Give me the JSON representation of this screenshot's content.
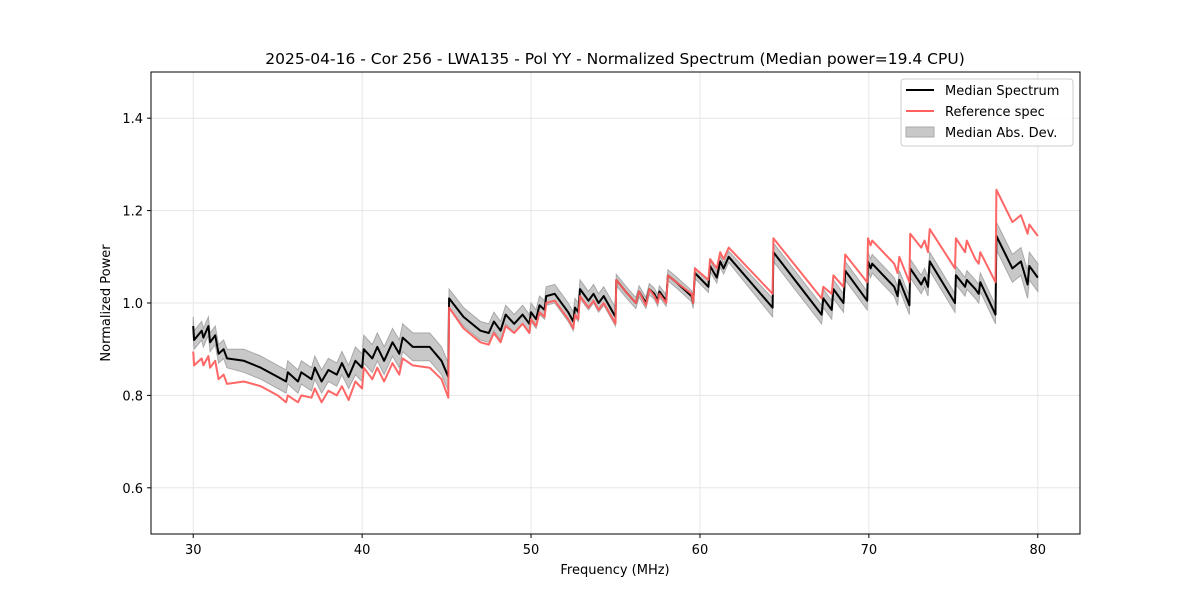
{
  "chart_data": {
    "type": "line",
    "title": "2025-04-16 - Cor 256 - LWA135 - Pol YY - Normalized Spectrum (Median power=19.4 CPU)",
    "xlabel": "Frequency (MHz)",
    "ylabel": "Normalized Power",
    "xlim": [
      27.5,
      82.5
    ],
    "ylim": [
      0.5,
      1.5
    ],
    "xticks": [
      30,
      40,
      50,
      60,
      70,
      80
    ],
    "yticks": [
      0.6,
      0.8,
      1.0,
      1.2,
      1.4
    ],
    "ytick_labels": [
      "0.6",
      "0.8",
      "1.0",
      "1.2",
      "1.4"
    ],
    "grid": true,
    "legend": {
      "placement": "top-right",
      "entries": [
        "Median Spectrum",
        "Reference spec",
        "Median Abs. Dev."
      ]
    },
    "colors": {
      "median": "#000000",
      "reference": "#ff5f5f",
      "mad": "#b0b0b0"
    },
    "frequency": [
      30.0,
      30.05,
      30.5,
      30.6,
      30.9,
      31.0,
      31.3,
      31.5,
      31.8,
      32.0,
      33,
      34,
      35,
      35.5,
      35.6,
      36.2,
      36.4,
      37,
      37.2,
      37.6,
      38,
      38.5,
      38.8,
      39.2,
      39.6,
      40,
      40.1,
      40.6,
      40.9,
      41.3,
      41.8,
      42.2,
      42.4,
      43,
      44,
      44.7,
      45.1,
      45.15,
      46,
      47,
      47.5,
      47.8,
      48.2,
      48.5,
      49,
      49.5,
      49.9,
      50,
      50.3,
      50.5,
      50.8,
      50.9,
      51.4,
      52.2,
      52.5,
      52.6,
      52.8,
      52.9,
      53.4,
      53.7,
      54,
      54.3,
      55.0,
      55.05,
      55.6,
      56.2,
      56.4,
      56.8,
      57.0,
      57.3,
      57.5,
      57.6,
      58,
      58.1,
      58.6,
      59.5,
      59.6,
      59.7,
      60.5,
      60.6,
      61,
      61.2,
      61.4,
      61.7,
      64.3,
      64.35,
      67.2,
      67.3,
      67.8,
      67.9,
      68.5,
      68.6,
      69.9,
      69.95,
      70.1,
      70.2,
      71.5,
      71.7,
      71.8,
      72.4,
      72.45,
      73.1,
      73.3,
      73.5,
      73.6,
      75.1,
      75.15,
      75.7,
      75.8,
      76.3,
      76.5,
      76.6,
      77.5,
      77.55,
      78.5,
      79,
      79.4,
      79.5,
      80
    ],
    "median": [
      0.95,
      0.92,
      0.94,
      0.925,
      0.95,
      0.915,
      0.93,
      0.89,
      0.9,
      0.88,
      0.875,
      0.86,
      0.84,
      0.83,
      0.85,
      0.83,
      0.85,
      0.835,
      0.86,
      0.83,
      0.855,
      0.845,
      0.87,
      0.84,
      0.875,
      0.86,
      0.9,
      0.88,
      0.905,
      0.875,
      0.915,
      0.89,
      0.925,
      0.905,
      0.905,
      0.875,
      0.84,
      1.01,
      0.97,
      0.94,
      0.935,
      0.96,
      0.94,
      0.975,
      0.955,
      0.975,
      0.955,
      0.98,
      0.965,
      0.995,
      0.985,
      1.015,
      1.02,
      0.98,
      0.96,
      0.99,
      0.98,
      1.03,
      1.005,
      1.02,
      1.0,
      1.015,
      0.97,
      1.05,
      1.025,
      1.0,
      1.025,
      1.0,
      1.03,
      1.02,
      1.005,
      1.025,
      1.005,
      1.06,
      1.045,
      1.015,
      1.0,
      1.065,
      1.035,
      1.08,
      1.055,
      1.09,
      1.075,
      1.1,
      0.99,
      1.11,
      0.975,
      1.01,
      0.985,
      1.03,
      1.0,
      1.07,
      1.005,
      1.09,
      1.075,
      1.085,
      1.035,
      1.015,
      1.05,
      0.995,
      1.075,
      1.04,
      1.055,
      1.035,
      1.09,
      1.0,
      1.06,
      1.035,
      1.05,
      1.03,
      1.02,
      1.045,
      0.975,
      1.145,
      1.075,
      1.09,
      1.04,
      1.08,
      1.055
    ],
    "reference": [
      0.895,
      0.865,
      0.88,
      0.865,
      0.885,
      0.86,
      0.875,
      0.835,
      0.845,
      0.825,
      0.83,
      0.82,
      0.8,
      0.785,
      0.8,
      0.785,
      0.8,
      0.795,
      0.815,
      0.785,
      0.81,
      0.8,
      0.82,
      0.79,
      0.83,
      0.815,
      0.86,
      0.835,
      0.86,
      0.83,
      0.87,
      0.845,
      0.88,
      0.865,
      0.86,
      0.835,
      0.795,
      0.99,
      0.945,
      0.915,
      0.91,
      0.935,
      0.915,
      0.95,
      0.935,
      0.955,
      0.935,
      0.965,
      0.95,
      0.98,
      0.97,
      1.0,
      1.005,
      0.965,
      0.945,
      0.975,
      0.965,
      1.015,
      0.99,
      1.005,
      0.985,
      1.0,
      0.955,
      1.05,
      1.025,
      1.0,
      1.025,
      0.995,
      1.03,
      1.015,
      1.0,
      1.02,
      1.0,
      1.06,
      1.045,
      1.02,
      1.0,
      1.075,
      1.05,
      1.095,
      1.075,
      1.11,
      1.095,
      1.12,
      1.02,
      1.14,
      1.01,
      1.035,
      1.02,
      1.06,
      1.035,
      1.105,
      1.045,
      1.14,
      1.125,
      1.135,
      1.085,
      1.065,
      1.1,
      1.045,
      1.15,
      1.12,
      1.135,
      1.11,
      1.16,
      1.075,
      1.14,
      1.11,
      1.135,
      1.095,
      1.085,
      1.11,
      1.045,
      1.245,
      1.175,
      1.19,
      1.15,
      1.17,
      1.145
    ],
    "mad": [
      0.02,
      0.02,
      0.02,
      0.02,
      0.02,
      0.02,
      0.02,
      0.02,
      0.02,
      0.02,
      0.025,
      0.025,
      0.025,
      0.025,
      0.025,
      0.025,
      0.025,
      0.025,
      0.025,
      0.025,
      0.025,
      0.025,
      0.025,
      0.025,
      0.03,
      0.03,
      0.03,
      0.03,
      0.03,
      0.03,
      0.03,
      0.03,
      0.03,
      0.03,
      0.03,
      0.03,
      0.03,
      0.02,
      0.02,
      0.02,
      0.02,
      0.02,
      0.02,
      0.02,
      0.02,
      0.02,
      0.02,
      0.02,
      0.02,
      0.02,
      0.02,
      0.02,
      0.02,
      0.02,
      0.02,
      0.02,
      0.02,
      0.02,
      0.02,
      0.02,
      0.02,
      0.02,
      0.02,
      0.012,
      0.012,
      0.012,
      0.012,
      0.012,
      0.012,
      0.012,
      0.012,
      0.012,
      0.012,
      0.012,
      0.012,
      0.012,
      0.012,
      0.012,
      0.012,
      0.012,
      0.012,
      0.012,
      0.012,
      0.012,
      0.02,
      0.02,
      0.02,
      0.02,
      0.02,
      0.02,
      0.02,
      0.02,
      0.02,
      0.02,
      0.02,
      0.02,
      0.02,
      0.02,
      0.02,
      0.02,
      0.02,
      0.02,
      0.02,
      0.02,
      0.02,
      0.02,
      0.02,
      0.02,
      0.02,
      0.02,
      0.02,
      0.02,
      0.02,
      0.03,
      0.03,
      0.03,
      0.03,
      0.03,
      0.03
    ]
  }
}
